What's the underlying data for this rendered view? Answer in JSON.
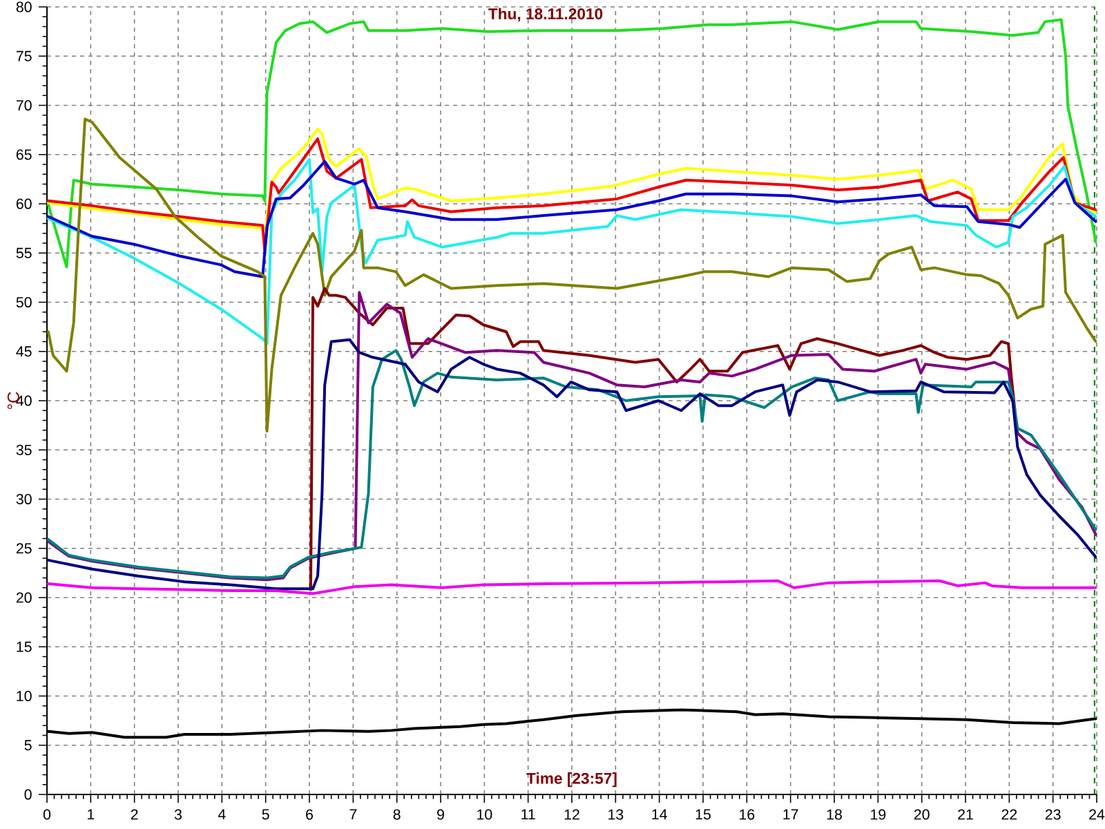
{
  "chart_data": {
    "type": "line",
    "title": "Thu, 18.11.2010",
    "xlabel": "Time [23:57]",
    "ylabel": "°C",
    "xlim": [
      0,
      24
    ],
    "xticks": [
      0,
      1,
      2,
      3,
      4,
      5,
      6,
      7,
      8,
      9,
      10,
      11,
      12,
      13,
      14,
      15,
      16,
      17,
      18,
      19,
      20,
      21,
      22,
      23,
      24
    ],
    "ylim": [
      0,
      80
    ],
    "yticks": [
      0,
      5,
      10,
      15,
      20,
      25,
      30,
      35,
      40,
      45,
      50,
      55,
      60,
      65,
      70,
      75,
      80
    ],
    "grid": true,
    "ref_lines": [
      {
        "axis": "x",
        "value": 23.95,
        "color": "#008000",
        "line_style": "dashed"
      }
    ],
    "series": [
      {
        "color": "#22dd22",
        "x": [
          0.03,
          0.45,
          0.56,
          0.61,
          1.03,
          2.03,
          3.03,
          3.98,
          4.93,
          4.98,
          5.03,
          5.24,
          5.45,
          5.77,
          6.08,
          6.4,
          6.92,
          7.24,
          7.35,
          7.56,
          8.19,
          9.03,
          10.08,
          11.35,
          13.03,
          14.08,
          15.13,
          15.66,
          17.03,
          18.08,
          19.03,
          19.87,
          19.98,
          21.13,
          22.08,
          22.66,
          22.82,
          23.19,
          23.29,
          23.34,
          23.56,
          23.77,
          23.98
        ],
        "values": [
          59.9,
          53.6,
          60.1,
          62.4,
          62.0,
          61.7,
          61.4,
          61.0,
          60.8,
          60.3,
          71.3,
          76.4,
          77.6,
          78.3,
          78.5,
          77.4,
          78.3,
          78.5,
          77.6,
          77.6,
          77.6,
          77.8,
          77.5,
          77.6,
          77.6,
          77.8,
          78.2,
          78.2,
          78.5,
          77.7,
          78.5,
          78.5,
          77.8,
          77.5,
          77.1,
          77.4,
          78.5,
          78.7,
          75.0,
          69.9,
          65.2,
          61.0,
          56.1
        ]
      },
      {
        "color": "#ffff00",
        "x": [
          0.03,
          1.03,
          2.03,
          3.03,
          3.98,
          4.93,
          5.0,
          5.14,
          5.35,
          5.66,
          5.87,
          6.19,
          6.29,
          6.45,
          6.61,
          7.14,
          7.3,
          7.45,
          7.56,
          8.19,
          8.4,
          9.24,
          10.29,
          11.35,
          12.92,
          13.98,
          14.61,
          15.66,
          17.03,
          18.08,
          19.03,
          19.92,
          20.08,
          20.71,
          21.13,
          21.29,
          21.98,
          22.24,
          22.92,
          23.22,
          23.45,
          23.66,
          23.98
        ],
        "values": [
          60.1,
          59.5,
          59.0,
          58.4,
          57.9,
          57.5,
          57.5,
          62.2,
          63.6,
          64.8,
          65.7,
          67.6,
          67.1,
          64.5,
          63.8,
          65.6,
          64.8,
          62.0,
          60.5,
          61.6,
          61.5,
          60.3,
          60.6,
          61.0,
          61.8,
          63.0,
          63.6,
          63.3,
          62.9,
          62.5,
          62.9,
          63.4,
          61.5,
          62.4,
          61.5,
          59.4,
          59.4,
          60.5,
          64.8,
          66.1,
          61.0,
          59.8,
          59.1
        ]
      },
      {
        "color": "#ee0000",
        "x": [
          0.03,
          1.03,
          2.03,
          3.03,
          3.98,
          4.93,
          4.98,
          5.14,
          5.24,
          5.3,
          5.66,
          6.19,
          6.4,
          6.61,
          7.19,
          7.4,
          8.19,
          8.35,
          8.5,
          9.24,
          10.29,
          11.35,
          13.03,
          13.98,
          14.61,
          15.66,
          17.03,
          18.08,
          19.03,
          19.98,
          20.14,
          20.82,
          21.13,
          21.29,
          21.98,
          22.29,
          22.92,
          23.24,
          23.5,
          23.98
        ],
        "values": [
          60.3,
          59.8,
          59.2,
          58.7,
          58.2,
          57.8,
          55.2,
          62.2,
          61.7,
          61.1,
          63.3,
          66.6,
          63.3,
          62.6,
          64.5,
          59.6,
          59.8,
          60.4,
          59.8,
          59.2,
          59.6,
          59.8,
          60.5,
          61.7,
          62.4,
          62.2,
          61.9,
          61.4,
          61.7,
          62.4,
          60.3,
          61.2,
          60.5,
          58.3,
          58.3,
          60.1,
          63.3,
          64.7,
          60.1,
          59.4
        ]
      },
      {
        "color": "#22eeee",
        "x": [
          0.03,
          1.03,
          1.98,
          3.03,
          3.98,
          4.93,
          5.03,
          5.14,
          5.35,
          5.66,
          6.0,
          6.08,
          6.19,
          6.29,
          6.4,
          6.5,
          7.03,
          7.2,
          7.29,
          7.56,
          8.19,
          8.24,
          8.4,
          9.03,
          10.29,
          10.61,
          11.35,
          12.82,
          13.03,
          13.45,
          14.5,
          15.66,
          17.03,
          18.08,
          19.03,
          19.87,
          20.19,
          21.03,
          21.24,
          21.71,
          21.98,
          22.08,
          22.4,
          22.92,
          23.26,
          23.5,
          23.98
        ],
        "values": [
          58.5,
          56.6,
          54.5,
          51.9,
          49.3,
          46.3,
          45.8,
          59.1,
          61.0,
          62.4,
          64.5,
          59.1,
          59.5,
          53.1,
          58.7,
          60.1,
          61.9,
          55.4,
          54.0,
          56.3,
          56.8,
          58.2,
          56.6,
          55.6,
          56.6,
          57.0,
          57.0,
          57.7,
          58.8,
          58.4,
          59.4,
          59.1,
          58.7,
          58.0,
          58.4,
          58.8,
          58.2,
          57.8,
          56.8,
          55.6,
          56.1,
          58.7,
          59.6,
          61.9,
          63.8,
          60.1,
          58.7
        ]
      },
      {
        "color": "#0000cc",
        "x": [
          0.03,
          1.03,
          1.98,
          3.03,
          3.98,
          4.29,
          4.93,
          5.03,
          5.24,
          5.56,
          5.87,
          6.35,
          6.61,
          7.03,
          7.24,
          7.56,
          8.19,
          9.24,
          10.29,
          11.35,
          13.03,
          13.98,
          14.61,
          15.66,
          17.03,
          18.08,
          19.03,
          19.98,
          20.29,
          21.03,
          21.29,
          21.98,
          22.24,
          22.92,
          23.29,
          23.5,
          23.98
        ],
        "values": [
          58.7,
          56.7,
          55.9,
          54.7,
          53.8,
          53.1,
          52.6,
          57.7,
          60.5,
          60.6,
          61.9,
          64.3,
          62.6,
          62.0,
          62.4,
          59.6,
          59.2,
          58.4,
          58.4,
          58.8,
          59.4,
          60.3,
          61.0,
          61.0,
          60.8,
          60.2,
          60.5,
          60.9,
          59.8,
          59.7,
          58.2,
          57.9,
          57.6,
          60.8,
          62.5,
          60.1,
          58.2
        ]
      },
      {
        "color": "#808000",
        "x": [
          0.03,
          0.14,
          0.45,
          0.61,
          0.72,
          0.87,
          1.03,
          1.66,
          2.08,
          2.5,
          2.93,
          3.45,
          3.98,
          4.82,
          4.98,
          5.03,
          5.14,
          5.35,
          5.66,
          6.08,
          6.19,
          6.35,
          6.5,
          7.03,
          7.19,
          7.24,
          7.56,
          7.98,
          8.19,
          8.61,
          9.24,
          10.29,
          11.35,
          13.03,
          14.5,
          15.03,
          15.66,
          16.5,
          17.03,
          17.87,
          18.29,
          18.82,
          19.03,
          19.24,
          19.77,
          19.98,
          20.29,
          21.03,
          21.35,
          21.77,
          21.98,
          22.19,
          22.5,
          22.77,
          22.82,
          23.22,
          23.29,
          23.77,
          23.98
        ],
        "values": [
          47.0,
          44.6,
          43.0,
          47.9,
          57.3,
          68.6,
          68.3,
          64.7,
          63.1,
          61.5,
          58.7,
          56.6,
          54.7,
          53.1,
          52.6,
          36.9,
          43.2,
          50.7,
          53.5,
          57.0,
          55.9,
          50.7,
          52.6,
          55.2,
          57.3,
          53.5,
          53.5,
          53.1,
          51.7,
          52.8,
          51.4,
          51.7,
          51.9,
          51.4,
          52.6,
          53.1,
          53.1,
          52.6,
          53.5,
          53.3,
          52.1,
          52.4,
          54.2,
          54.9,
          55.6,
          53.3,
          53.5,
          52.8,
          52.7,
          51.9,
          50.7,
          48.4,
          49.3,
          49.6,
          55.9,
          56.8,
          51.0,
          47.4,
          46.0
        ]
      },
      {
        "color": "#800000",
        "x": [
          6.03,
          6.08,
          6.19,
          6.35,
          6.45,
          6.61,
          6.82,
          7.14,
          7.45,
          7.77,
          8.14,
          8.29,
          8.71,
          9.35,
          9.66,
          9.98,
          10.5,
          10.66,
          10.82,
          11.24,
          11.35,
          12.4,
          13.45,
          13.98,
          14.4,
          14.71,
          14.93,
          15.14,
          15.56,
          15.9,
          16.71,
          16.98,
          17.24,
          17.61,
          18.08,
          19.03,
          19.56,
          19.98,
          20.29,
          20.6,
          21.03,
          21.56,
          21.82,
          21.98,
          22.05,
          22.14
        ],
        "values": [
          20.8,
          50.5,
          49.6,
          51.4,
          50.7,
          50.7,
          50.5,
          48.9,
          47.7,
          49.4,
          49.4,
          45.8,
          45.8,
          48.7,
          48.6,
          47.7,
          47.0,
          45.5,
          46.0,
          46.0,
          45.1,
          44.6,
          43.9,
          44.2,
          41.9,
          43.2,
          44.2,
          43.0,
          43.0,
          44.9,
          45.6,
          43.2,
          45.8,
          46.3,
          45.8,
          44.6,
          45.1,
          45.6,
          44.9,
          44.4,
          44.2,
          44.6,
          46.0,
          45.8,
          42.3,
          38.6
        ]
      },
      {
        "color": "#800080",
        "x": [
          0.03,
          0.5,
          1.03,
          2.08,
          3.14,
          4.19,
          5.03,
          5.4,
          5.56,
          5.98,
          6.5,
          7.05,
          7.14,
          7.35,
          7.77,
          8.08,
          8.35,
          8.71,
          9.56,
          10.29,
          11.14,
          11.35,
          12.4,
          13.03,
          13.66,
          14.5,
          14.93,
          15.14,
          15.66,
          16.19,
          17.03,
          17.87,
          18.19,
          18.92,
          19.87,
          19.98,
          20.08,
          21.03,
          21.66,
          21.98,
          22.19,
          22.4,
          22.71,
          23.14,
          23.66,
          23.98
        ],
        "values": [
          25.7,
          24.2,
          23.7,
          23.0,
          22.5,
          22.0,
          21.8,
          22.0,
          23.0,
          24.0,
          24.5,
          25.0,
          51.0,
          47.9,
          49.8,
          48.9,
          44.4,
          46.3,
          44.9,
          45.1,
          44.9,
          43.9,
          42.8,
          41.6,
          41.4,
          42.1,
          41.9,
          42.8,
          42.5,
          43.2,
          44.6,
          44.7,
          43.2,
          43.0,
          44.2,
          42.8,
          43.7,
          43.2,
          43.9,
          43.2,
          36.7,
          35.8,
          35.1,
          32.0,
          29.2,
          26.4
        ]
      },
      {
        "color": "#008080",
        "x": [
          0.03,
          0.5,
          1.03,
          2.08,
          3.14,
          4.19,
          5.03,
          5.4,
          5.56,
          5.98,
          6.5,
          6.92,
          7.19,
          7.35,
          7.45,
          7.66,
          7.98,
          8.1,
          8.29,
          8.4,
          8.61,
          8.93,
          9.24,
          10.29,
          11.35,
          11.87,
          12.61,
          13.24,
          13.98,
          14.93,
          14.98,
          15.05,
          15.66,
          16.4,
          17.03,
          17.56,
          17.87,
          18.08,
          18.82,
          19.03,
          19.87,
          19.92,
          20.03,
          21.13,
          21.24,
          21.98,
          22.08,
          22.19,
          22.5,
          23.14,
          23.56,
          23.98
        ],
        "values": [
          25.9,
          24.3,
          23.8,
          23.1,
          22.6,
          22.1,
          22.0,
          22.2,
          23.1,
          24.1,
          24.6,
          24.9,
          25.1,
          30.6,
          41.4,
          44.2,
          45.1,
          44.2,
          41.4,
          39.5,
          41.9,
          42.8,
          42.4,
          42.1,
          42.3,
          41.4,
          41.1,
          40.0,
          40.4,
          40.5,
          37.9,
          40.6,
          40.4,
          39.3,
          41.4,
          42.3,
          42.1,
          40.0,
          40.9,
          40.7,
          40.7,
          38.8,
          41.6,
          41.4,
          41.9,
          41.9,
          40.4,
          37.2,
          36.5,
          32.5,
          29.7,
          26.9
        ]
      },
      {
        "color": "#000080",
        "x": [
          0.03,
          1.03,
          2.08,
          3.14,
          4.19,
          5.24,
          6.08,
          6.19,
          6.29,
          6.35,
          6.5,
          6.92,
          7.14,
          7.45,
          8.19,
          8.5,
          8.93,
          9.24,
          9.66,
          9.98,
          10.29,
          10.82,
          11.35,
          11.66,
          11.98,
          12.4,
          13.03,
          13.24,
          13.98,
          14.5,
          14.93,
          15.35,
          15.66,
          16.19,
          16.82,
          16.98,
          17.14,
          17.61,
          18.08,
          18.82,
          19.87,
          19.98,
          20.5,
          21.66,
          21.87,
          22.08,
          22.19,
          22.4,
          22.71,
          23.14,
          23.56,
          23.98
        ],
        "values": [
          23.8,
          22.9,
          22.2,
          21.6,
          21.3,
          20.9,
          20.9,
          22.2,
          30.6,
          41.6,
          46.0,
          46.2,
          44.9,
          44.4,
          43.7,
          41.9,
          40.9,
          43.2,
          44.4,
          43.7,
          43.2,
          42.8,
          41.6,
          40.4,
          41.9,
          41.1,
          40.9,
          39.0,
          40.0,
          39.0,
          40.7,
          39.5,
          39.5,
          40.9,
          41.6,
          38.5,
          40.9,
          42.1,
          41.9,
          40.9,
          41.0,
          41.9,
          40.9,
          40.8,
          41.9,
          40.0,
          35.3,
          32.5,
          30.4,
          28.3,
          26.4,
          24.1
        ]
      },
      {
        "color": "#ee00ee",
        "x": [
          0.03,
          1.03,
          2.08,
          3.14,
          4.19,
          5.24,
          6.08,
          6.61,
          7.03,
          7.87,
          9.03,
          9.98,
          11.35,
          13.66,
          15.45,
          16.71,
          17.08,
          17.87,
          18.92,
          20.4,
          20.82,
          21.45,
          21.6,
          22.29,
          23.98
        ],
        "values": [
          21.4,
          21.0,
          20.9,
          20.8,
          20.7,
          20.7,
          20.4,
          20.8,
          21.1,
          21.3,
          21.0,
          21.3,
          21.4,
          21.5,
          21.6,
          21.7,
          21.0,
          21.5,
          21.6,
          21.7,
          21.2,
          21.5,
          21.2,
          21.0,
          21.0
        ]
      },
      {
        "color": "#000000",
        "x": [
          0.03,
          0.5,
          1.03,
          1.77,
          2.72,
          3.14,
          4.19,
          5.24,
          6.29,
          7.35,
          7.87,
          8.4,
          9.45,
          9.98,
          10.5,
          11.35,
          12.08,
          13.14,
          14.5,
          15.77,
          16.19,
          16.82,
          17.87,
          18.92,
          19.98,
          21.03,
          22.08,
          23.14,
          23.98
        ],
        "values": [
          6.4,
          6.2,
          6.3,
          5.8,
          5.8,
          6.1,
          6.1,
          6.3,
          6.5,
          6.4,
          6.5,
          6.7,
          6.9,
          7.1,
          7.2,
          7.6,
          8.0,
          8.4,
          8.6,
          8.4,
          8.1,
          8.2,
          7.9,
          7.8,
          7.7,
          7.6,
          7.3,
          7.2,
          7.7
        ]
      }
    ]
  }
}
